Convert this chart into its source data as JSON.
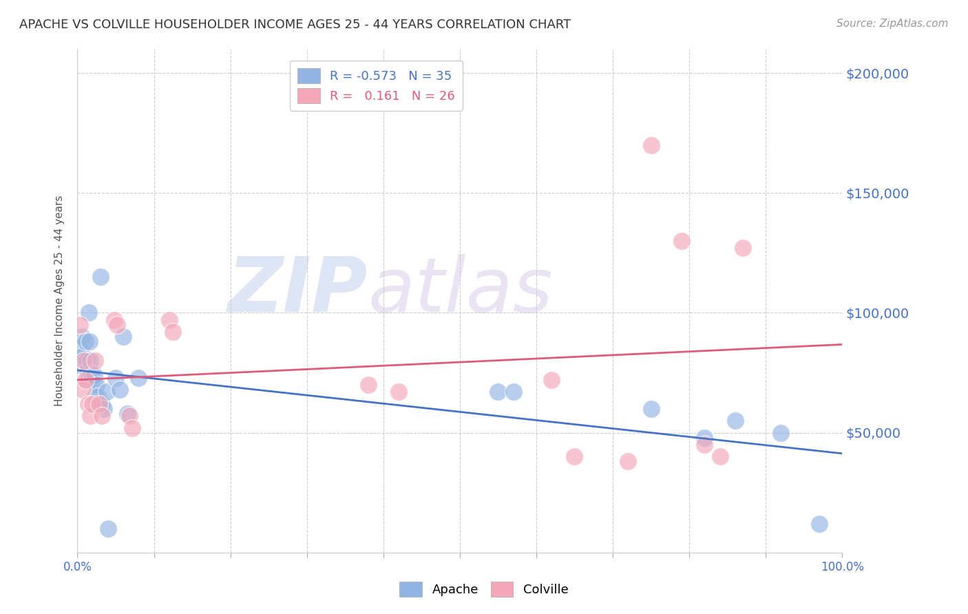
{
  "title": "APACHE VS COLVILLE HOUSEHOLDER INCOME AGES 25 - 44 YEARS CORRELATION CHART",
  "source": "Source: ZipAtlas.com",
  "ylabel": "Householder Income Ages 25 - 44 years",
  "xlim": [
    0,
    1.0
  ],
  "ylim": [
    0,
    210000
  ],
  "xticks": [
    0.0,
    0.1,
    0.2,
    0.3,
    0.4,
    0.5,
    0.6,
    0.7,
    0.8,
    0.9,
    1.0
  ],
  "xtick_labels": [
    "0.0%",
    "",
    "",
    "",
    "",
    "",
    "",
    "",
    "",
    "",
    "100.0%"
  ],
  "ytick_values": [
    0,
    50000,
    100000,
    150000,
    200000
  ],
  "ytick_labels": [
    "",
    "$50,000",
    "$100,000",
    "$150,000",
    "$200,000"
  ],
  "apache_color": "#92b4e3",
  "colville_color": "#f4a7b9",
  "apache_line_color": "#4472c4",
  "colville_line_color": "#e05a7a",
  "watermark_zip": "ZIP",
  "watermark_atlas": "atlas",
  "apache_x": [
    0.003,
    0.003,
    0.006,
    0.007,
    0.01,
    0.012,
    0.013,
    0.014,
    0.015,
    0.016,
    0.017,
    0.018,
    0.019,
    0.021,
    0.022,
    0.023,
    0.025,
    0.027,
    0.03,
    0.032,
    0.035,
    0.038,
    0.04,
    0.05,
    0.055,
    0.06,
    0.065,
    0.08,
    0.55,
    0.57,
    0.75,
    0.82,
    0.86,
    0.92,
    0.97
  ],
  "apache_y": [
    85000,
    78000,
    90000,
    82000,
    88000,
    80000,
    76000,
    72000,
    100000,
    88000,
    80000,
    75000,
    73000,
    71000,
    74000,
    65000,
    70000,
    65000,
    115000,
    62000,
    60000,
    67000,
    10000,
    73000,
    68000,
    90000,
    58000,
    73000,
    67000,
    67000,
    60000,
    48000,
    55000,
    50000,
    12000
  ],
  "colville_x": [
    0.003,
    0.007,
    0.009,
    0.01,
    0.014,
    0.017,
    0.019,
    0.023,
    0.028,
    0.032,
    0.048,
    0.052,
    0.068,
    0.072,
    0.12,
    0.125,
    0.38,
    0.42,
    0.62,
    0.65,
    0.72,
    0.75,
    0.79,
    0.82,
    0.84,
    0.87
  ],
  "colville_y": [
    95000,
    68000,
    80000,
    72000,
    62000,
    57000,
    62000,
    80000,
    62000,
    57000,
    97000,
    95000,
    57000,
    52000,
    97000,
    92000,
    70000,
    67000,
    72000,
    40000,
    38000,
    170000,
    130000,
    45000,
    40000,
    127000
  ],
  "apache_R": -0.573,
  "apache_N": 35,
  "colville_R": 0.161,
  "colville_N": 26,
  "background_color": "#ffffff",
  "grid_color": "#cccccc",
  "tick_color": "#4472c4",
  "title_color": "#333333",
  "source_color": "#999999"
}
